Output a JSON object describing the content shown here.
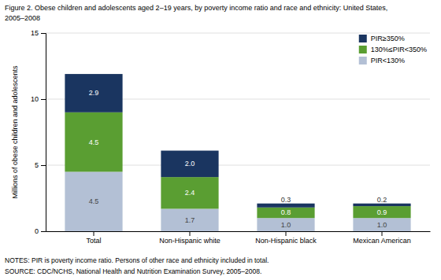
{
  "chart_data": {
    "type": "bar",
    "stacked": true,
    "title": "Figure 2. Obese children and adolescents aged 2–19 years, by poverty income ratio and race and ethnicity: United States,",
    "subtitle": "2005–2008",
    "annotations": [
      "NOTES: PIR is poverty income ratio. Persons of other race and ethnicity included in total.",
      "SOURCE: CDC/NCHS, National Health and Nutrition Examination Survey, 2005–2008."
    ],
    "y_label": "Millions of obese children and adolescents",
    "categories": [
      "Total",
      "Non-Hispanic white",
      "Non-Hispanic black",
      "Mexican American"
    ],
    "series": [
      {
        "name": "PIR<130%",
        "color": "#b3c0d5",
        "values": [
          4.5,
          1.7,
          1.0,
          1.0
        ],
        "value_labels": [
          "4.5",
          "1.7",
          "1.0",
          "1.0"
        ]
      },
      {
        "name": "130%≤PIR<350%",
        "color": "#5a9e32",
        "values": [
          4.5,
          2.4,
          0.8,
          0.9
        ],
        "value_labels": [
          "4.5",
          "2.4",
          "0.8",
          "0.9"
        ]
      },
      {
        "name": "PIR≥350%",
        "color": "#1a3560",
        "values": [
          2.9,
          2.0,
          0.3,
          0.2
        ],
        "value_labels": [
          "2.9",
          "2.0",
          "0.3",
          "0.2"
        ]
      }
    ],
    "ylim": [
      0,
      15
    ],
    "yticks": [
      0,
      5,
      10,
      15
    ],
    "grid": true,
    "legend": "upper right",
    "data_labels": true
  }
}
